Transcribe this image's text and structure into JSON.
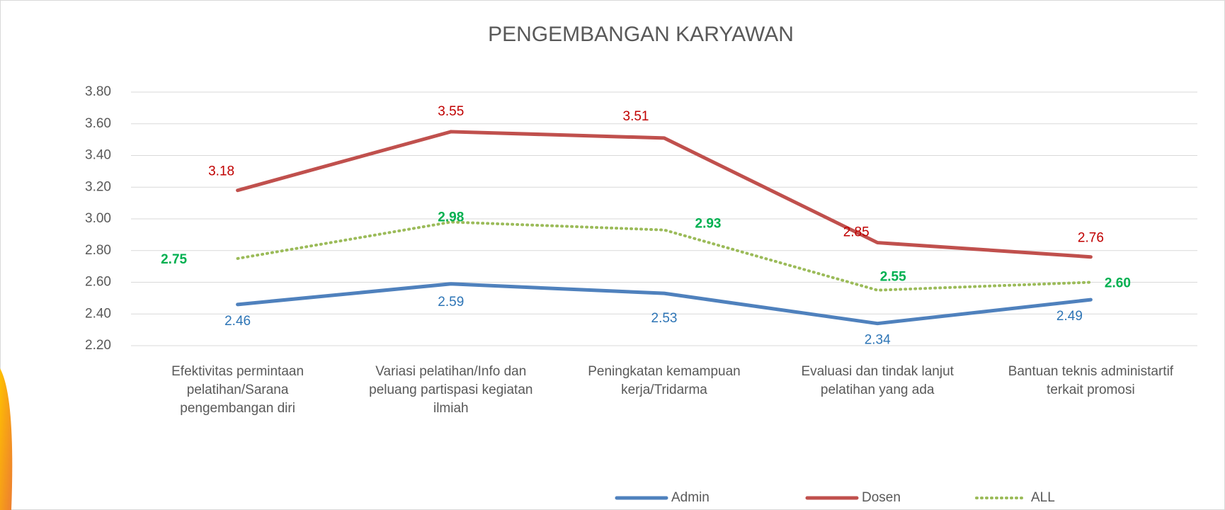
{
  "chart_data": {
    "type": "line",
    "title": "PENGEMBANGAN KARYAWAN",
    "categories": [
      "Efektivitas permintaan pelatihan/Sarana pengembangan diri",
      "Variasi pelatihan/Info dan peluang partispasi kegiatan ilmiah",
      "Peningkatan kemampuan kerja/Tridarma",
      "Evaluasi dan tindak lanjut pelatihan yang ada",
      "Bantuan teknis administartif terkait promosi"
    ],
    "series": [
      {
        "name": "Admin",
        "color": "#4f81bd",
        "label_color": "#2e75b6",
        "values": [
          2.46,
          2.59,
          2.53,
          2.34,
          2.49
        ]
      },
      {
        "name": "Dosen",
        "color": "#c0504d",
        "label_color": "#c00000",
        "values": [
          3.18,
          3.55,
          3.51,
          2.85,
          2.76
        ]
      },
      {
        "name": "ALL",
        "color": "#9bbb59",
        "label_color": "#00b050",
        "dotted": true,
        "values": [
          2.75,
          2.98,
          2.93,
          2.55,
          2.6
        ],
        "value_labels": [
          "2.75",
          "2.98",
          "2.93",
          "2.55",
          "2.60"
        ]
      }
    ],
    "ylim": [
      2.2,
      3.8
    ],
    "yticks": [
      {
        "value": 2.2,
        "label": "2.20"
      },
      {
        "value": 2.4,
        "label": "2.40"
      },
      {
        "value": 2.6,
        "label": "2.60"
      },
      {
        "value": 2.8,
        "label": "2.80"
      },
      {
        "value": 3.0,
        "label": "3.00"
      },
      {
        "value": 3.2,
        "label": "3.20"
      },
      {
        "value": 3.4,
        "label": "3.40"
      },
      {
        "value": 3.6,
        "label": "3.60"
      },
      {
        "value": 3.8,
        "label": "3.80"
      }
    ],
    "grid": true,
    "legend": "bottom"
  }
}
